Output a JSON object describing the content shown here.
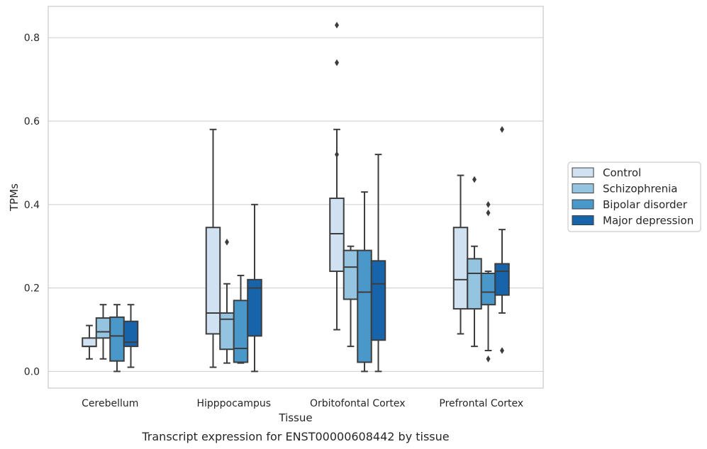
{
  "caption": "Transcript expression for ENST00000608442 by tissue",
  "chart_data": {
    "type": "box",
    "title": "",
    "xlabel": "Tissue",
    "ylabel": "TPMs",
    "ylim": [
      -0.04,
      0.875
    ],
    "yticks": [
      0.0,
      0.2,
      0.4,
      0.6,
      0.8
    ],
    "ytick_labels": [
      "0.0",
      "0.2",
      "0.4",
      "0.6",
      "0.8"
    ],
    "grid": "horizontal",
    "legend_position": "right",
    "categories": [
      "Cerebellum",
      "Hipppocampus",
      "Orbitofontal Cortex",
      "Prefrontal Cortex"
    ],
    "series": [
      {
        "name": "Control",
        "color": "#d0e1f2",
        "boxes": [
          {
            "whisker_low": 0.03,
            "q1": 0.06,
            "median": 0.06,
            "q3": 0.08,
            "whisker_high": 0.11,
            "outliers": []
          },
          {
            "whisker_low": 0.01,
            "q1": 0.09,
            "median": 0.14,
            "q3": 0.345,
            "whisker_high": 0.58,
            "outliers": []
          },
          {
            "whisker_low": 0.1,
            "q1": 0.24,
            "median": 0.33,
            "q3": 0.415,
            "whisker_high": 0.58,
            "outliers": [
              0.52,
              0.74,
              0.83
            ]
          },
          {
            "whisker_low": 0.09,
            "q1": 0.15,
            "median": 0.22,
            "q3": 0.345,
            "whisker_high": 0.47,
            "outliers": []
          }
        ]
      },
      {
        "name": "Schizophrenia",
        "color": "#94c4df",
        "boxes": [
          {
            "whisker_low": 0.03,
            "q1": 0.08,
            "median": 0.095,
            "q3": 0.128,
            "whisker_high": 0.16,
            "outliers": []
          },
          {
            "whisker_low": 0.02,
            "q1": 0.053,
            "median": 0.125,
            "q3": 0.14,
            "whisker_high": 0.21,
            "outliers": [
              0.31
            ]
          },
          {
            "whisker_low": 0.06,
            "q1": 0.173,
            "median": 0.25,
            "q3": 0.29,
            "whisker_high": 0.3,
            "outliers": []
          },
          {
            "whisker_low": 0.06,
            "q1": 0.15,
            "median": 0.235,
            "q3": 0.27,
            "whisker_high": 0.3,
            "outliers": [
              0.46
            ]
          }
        ]
      },
      {
        "name": "Bipolar disorder",
        "color": "#4a98c9",
        "boxes": [
          {
            "whisker_low": 0.0,
            "q1": 0.025,
            "median": 0.085,
            "q3": 0.13,
            "whisker_high": 0.16,
            "outliers": []
          },
          {
            "whisker_low": 0.02,
            "q1": 0.022,
            "median": 0.055,
            "q3": 0.17,
            "whisker_high": 0.23,
            "outliers": []
          },
          {
            "whisker_low": 0.0,
            "q1": 0.022,
            "median": 0.19,
            "q3": 0.29,
            "whisker_high": 0.43,
            "outliers": []
          },
          {
            "whisker_low": 0.05,
            "q1": 0.16,
            "median": 0.19,
            "q3": 0.235,
            "whisker_high": 0.24,
            "outliers": [
              0.03,
              0.38,
              0.4
            ]
          }
        ]
      },
      {
        "name": "Major depression",
        "color": "#1764ab",
        "boxes": [
          {
            "whisker_low": 0.01,
            "q1": 0.06,
            "median": 0.07,
            "q3": 0.12,
            "whisker_high": 0.16,
            "outliers": []
          },
          {
            "whisker_low": 0.0,
            "q1": 0.085,
            "median": 0.2,
            "q3": 0.22,
            "whisker_high": 0.4,
            "outliers": []
          },
          {
            "whisker_low": 0.0,
            "q1": 0.075,
            "median": 0.21,
            "q3": 0.265,
            "whisker_high": 0.52,
            "outliers": []
          },
          {
            "whisker_low": 0.14,
            "q1": 0.183,
            "median": 0.24,
            "q3": 0.258,
            "whisker_high": 0.34,
            "outliers": [
              0.05,
              0.58
            ]
          }
        ]
      }
    ]
  }
}
